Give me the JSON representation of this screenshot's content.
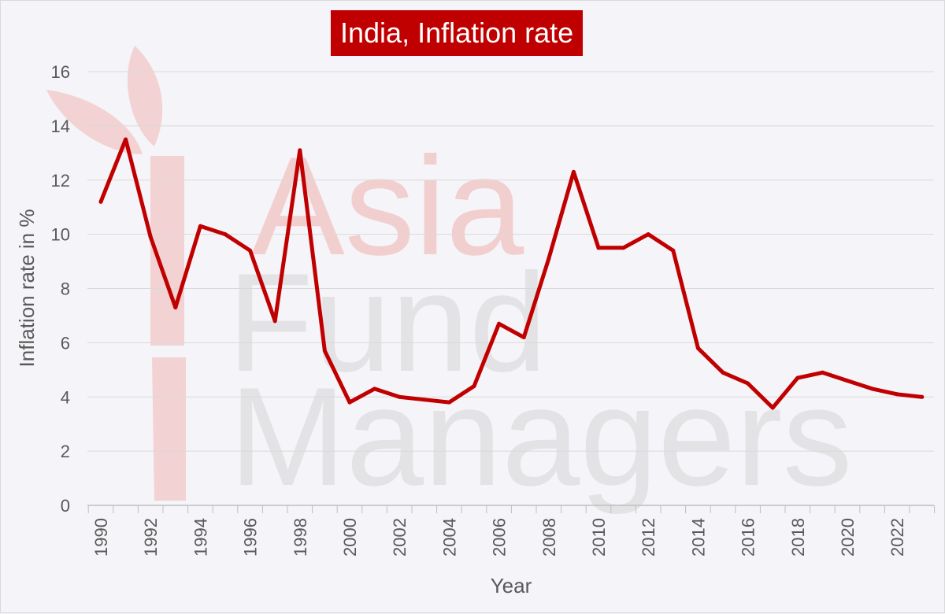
{
  "watermark": {
    "lines": [
      "Asia",
      "Fund",
      "Managers"
    ]
  },
  "chart_data": {
    "type": "line",
    "title": "India, Inflation rate",
    "xlabel": "Year",
    "ylabel": "Inflation rate in %",
    "ylim": [
      0,
      16
    ],
    "yticks": [
      0,
      2,
      4,
      6,
      8,
      10,
      12,
      14,
      16
    ],
    "xlim": [
      1990,
      2023
    ],
    "xticks": [
      "1990",
      "1992",
      "1994",
      "1996",
      "1998",
      "2000",
      "2002",
      "2004",
      "2006",
      "2008",
      "2010",
      "2012",
      "2014",
      "2016",
      "2018",
      "2020",
      "2022"
    ],
    "grid": true,
    "line_color": "#c00000",
    "x": [
      1990,
      1991,
      1992,
      1993,
      1994,
      1995,
      1996,
      1997,
      1998,
      1999,
      2000,
      2001,
      2002,
      2003,
      2004,
      2005,
      2006,
      2007,
      2008,
      2009,
      2010,
      2011,
      2012,
      2013,
      2014,
      2015,
      2016,
      2017,
      2018,
      2019,
      2020,
      2021,
      2022,
      2023
    ],
    "y": [
      11.2,
      13.5,
      9.9,
      7.3,
      10.3,
      10.0,
      9.4,
      6.8,
      13.1,
      5.7,
      3.8,
      4.3,
      4.0,
      3.9,
      3.8,
      4.4,
      6.7,
      6.2,
      9.1,
      12.3,
      9.5,
      9.5,
      10.0,
      9.4,
      5.8,
      4.9,
      4.5,
      3.6,
      4.7,
      4.9,
      4.6,
      4.3,
      4.1,
      4.0
    ]
  }
}
